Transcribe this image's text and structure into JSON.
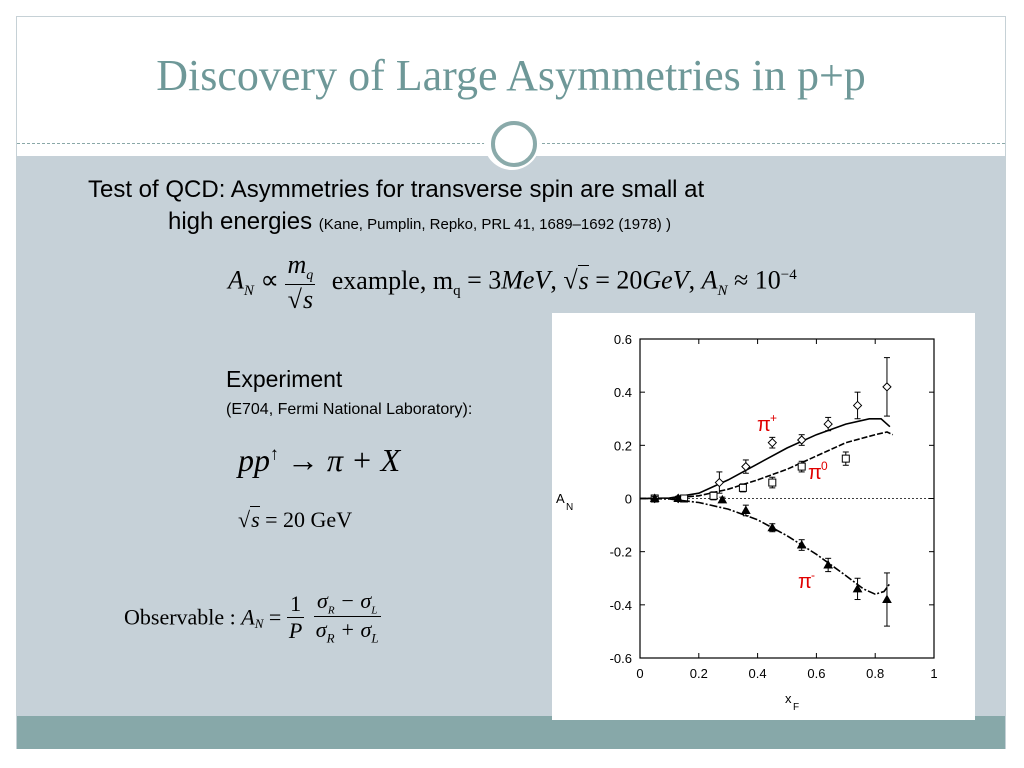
{
  "slide": {
    "title": "Discovery of Large Asymmetries in p+p",
    "heading_line1": "Test of QCD: Asymmetries for transverse spin are small at",
    "heading_line2": "high energies",
    "citation": "(Kane, Pumplin, Repko, PRL 41, 1689–1692 (1978) )",
    "formula_an": "A",
    "formula_an_sub": "N",
    "formula_prop": "∝",
    "formula_mq": "m",
    "formula_mq_sub": "q",
    "formula_s": "s",
    "formula_example": "example, m",
    "formula_example_sub": "q",
    "formula_rest": " = 3",
    "formula_mev": "MeV",
    "formula_comma1": ", ",
    "formula_eq20": " = 20",
    "formula_gev": "GeV",
    "formula_comma2": ", ",
    "formula_approx": " ≈ 10",
    "formula_exp": "−4",
    "experiment_title": "Experiment",
    "experiment_sub": "(E704, Fermi National Laboratory):",
    "reaction_lhs": "pp",
    "reaction_arrow_sup": "↑",
    "reaction_rhs": " → π + X",
    "energy_eq": " = 20 GeV",
    "observable_label": "Observable : ",
    "obs_an": "A",
    "obs_an_sub": "N",
    "obs_eq": " = ",
    "obs_one": "1",
    "obs_p": "P",
    "obs_num": "σ",
    "obs_num_r": "R",
    "obs_minus": " − σ",
    "obs_num_l": "L",
    "obs_den": "σ",
    "obs_den_r": "R",
    "obs_plus": " + σ",
    "obs_den_l": "L"
  },
  "colors": {
    "title": "#6e9898",
    "content_bg": "#c6d1d8",
    "footer_bg": "#87a8a9",
    "label_red": "#e00000"
  },
  "chart_data": {
    "type": "scatter",
    "xlabel": "x",
    "xlabel_sub": "F",
    "ylabel": "A",
    "ylabel_sub": "N",
    "xlim": [
      0,
      1
    ],
    "ylim": [
      -0.6,
      0.6
    ],
    "x_ticks": [
      "0",
      "0.2",
      "0.4",
      "0.6",
      "0.8",
      "1"
    ],
    "x_tick_values": [
      0,
      0.2,
      0.4,
      0.6,
      0.8,
      1.0
    ],
    "y_ticks": [
      "0.6",
      "0.4",
      "0.2",
      "0",
      "-0.2",
      "-0.4",
      "-0.6"
    ],
    "y_tick_values": [
      0.6,
      0.4,
      0.2,
      0,
      -0.2,
      -0.4,
      -0.6
    ],
    "series": [
      {
        "name": "π+",
        "label_main": "π",
        "label_sup": "+",
        "marker": "diamond",
        "points": [
          [
            0.05,
            0.0,
            0.008
          ],
          [
            0.13,
            0.0,
            0.008
          ],
          [
            0.27,
            0.06,
            0.04
          ],
          [
            0.36,
            0.12,
            0.025
          ],
          [
            0.45,
            0.21,
            0.02
          ],
          [
            0.55,
            0.22,
            0.02
          ],
          [
            0.64,
            0.28,
            0.025
          ],
          [
            0.74,
            0.35,
            0.05
          ],
          [
            0.84,
            0.42,
            0.11
          ]
        ],
        "curve": [
          [
            0.0,
            0.0
          ],
          [
            0.1,
            0.002
          ],
          [
            0.2,
            0.02
          ],
          [
            0.3,
            0.07
          ],
          [
            0.4,
            0.13
          ],
          [
            0.5,
            0.19
          ],
          [
            0.6,
            0.24
          ],
          [
            0.7,
            0.28
          ],
          [
            0.78,
            0.3
          ],
          [
            0.82,
            0.3
          ],
          [
            0.85,
            0.27
          ]
        ]
      },
      {
        "name": "π0",
        "label_main": "π",
        "label_sup": "0",
        "marker": "square",
        "points": [
          [
            0.05,
            0.0,
            0.008
          ],
          [
            0.15,
            0.0,
            0.008
          ],
          [
            0.25,
            0.01,
            0.015
          ],
          [
            0.35,
            0.04,
            0.015
          ],
          [
            0.45,
            0.06,
            0.02
          ],
          [
            0.55,
            0.12,
            0.02
          ],
          [
            0.7,
            0.15,
            0.025
          ]
        ],
        "curve": [
          [
            0.0,
            0.0
          ],
          [
            0.1,
            0.001
          ],
          [
            0.2,
            0.01
          ],
          [
            0.3,
            0.035
          ],
          [
            0.4,
            0.07
          ],
          [
            0.5,
            0.11
          ],
          [
            0.6,
            0.16
          ],
          [
            0.7,
            0.21
          ],
          [
            0.8,
            0.24
          ],
          [
            0.84,
            0.25
          ],
          [
            0.86,
            0.24
          ]
        ]
      },
      {
        "name": "π-",
        "label_main": "π",
        "label_sup": "-",
        "marker": "triangle",
        "points": [
          [
            0.05,
            0.0,
            0.008
          ],
          [
            0.13,
            0.0,
            0.008
          ],
          [
            0.28,
            -0.005,
            0.01
          ],
          [
            0.36,
            -0.045,
            0.02
          ],
          [
            0.45,
            -0.11,
            0.015
          ],
          [
            0.55,
            -0.175,
            0.02
          ],
          [
            0.64,
            -0.25,
            0.025
          ],
          [
            0.74,
            -0.34,
            0.04
          ],
          [
            0.84,
            -0.38,
            0.1
          ]
        ],
        "curve": [
          [
            0.0,
            0.0
          ],
          [
            0.1,
            -0.002
          ],
          [
            0.2,
            -0.015
          ],
          [
            0.3,
            -0.04
          ],
          [
            0.4,
            -0.08
          ],
          [
            0.5,
            -0.14
          ],
          [
            0.6,
            -0.21
          ],
          [
            0.7,
            -0.29
          ],
          [
            0.76,
            -0.34
          ],
          [
            0.8,
            -0.36
          ],
          [
            0.83,
            -0.35
          ],
          [
            0.85,
            -0.32
          ]
        ]
      }
    ]
  }
}
